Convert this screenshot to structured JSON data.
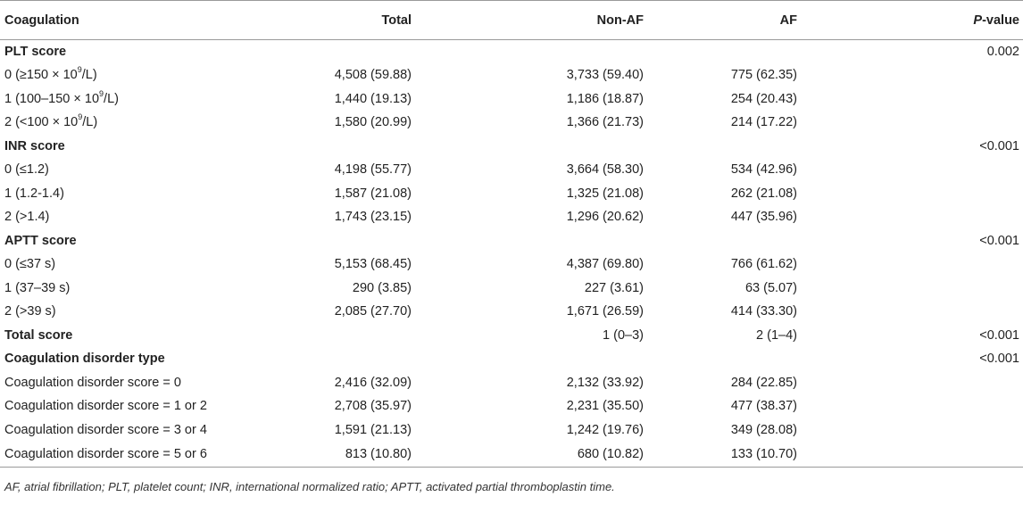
{
  "header": {
    "coagulation": "Coagulation",
    "total": "Total",
    "non_af": "Non-AF",
    "af": "AF",
    "p_italic": "P",
    "p_rest": "-value"
  },
  "rows": [
    {
      "label": "PLT score",
      "section": true,
      "total": "",
      "nonaf": "",
      "af": "",
      "p": "0.002"
    },
    {
      "label_pre": "0 (≥150 × 10",
      "sup": "9",
      "label_post": "/L)",
      "total": "4,508 (59.88)",
      "nonaf": "3,733 (59.40)",
      "af": "775 (62.35)",
      "p": ""
    },
    {
      "label_pre": "1 (100–150 × 10",
      "sup": "9",
      "label_post": "/L)",
      "total": "1,440 (19.13)",
      "nonaf": "1,186 (18.87)",
      "af": "254 (20.43)",
      "p": ""
    },
    {
      "label_pre": "2 (<100 × 10",
      "sup": "9",
      "label_post": "/L)",
      "total": "1,580 (20.99)",
      "nonaf": "1,366 (21.73)",
      "af": "214 (17.22)",
      "p": ""
    },
    {
      "label": "INR score",
      "section": true,
      "total": "",
      "nonaf": "",
      "af": "",
      "p": "<0.001"
    },
    {
      "label": "0 (≤1.2)",
      "total": "4,198 (55.77)",
      "nonaf": "3,664 (58.30)",
      "af": "534 (42.96)",
      "p": ""
    },
    {
      "label": "1 (1.2-1.4)",
      "total": "1,587 (21.08)",
      "nonaf": "1,325 (21.08)",
      "af": "262 (21.08)",
      "p": ""
    },
    {
      "label": "2 (>1.4)",
      "total": "1,743 (23.15)",
      "nonaf": "1,296 (20.62)",
      "af": "447 (35.96)",
      "p": ""
    },
    {
      "label": "APTT score",
      "section": true,
      "total": "",
      "nonaf": "",
      "af": "",
      "p": "<0.001"
    },
    {
      "label": "0 (≤37 s)",
      "total": "5,153 (68.45)",
      "nonaf": "4,387 (69.80)",
      "af": "766 (61.62)",
      "p": ""
    },
    {
      "label": "1 (37–39 s)",
      "total": "290 (3.85)",
      "nonaf": "227 (3.61)",
      "af": "63 (5.07)",
      "p": ""
    },
    {
      "label": "2 (>39 s)",
      "total": "2,085 (27.70)",
      "nonaf": "1,671 (26.59)",
      "af": "414 (33.30)",
      "p": ""
    },
    {
      "label": "Total score",
      "section": true,
      "total": "",
      "nonaf": "1 (0–3)",
      "af": "2 (1–4)",
      "p": "<0.001"
    },
    {
      "label": "Coagulation disorder type",
      "section": true,
      "total": "",
      "nonaf": "",
      "af": "",
      "p": "<0.001"
    },
    {
      "label": "Coagulation disorder score = 0",
      "total": "2,416 (32.09)",
      "nonaf": "2,132 (33.92)",
      "af": "284 (22.85)",
      "p": ""
    },
    {
      "label": "Coagulation disorder score = 1 or 2",
      "total": "2,708 (35.97)",
      "nonaf": "2,231 (35.50)",
      "af": "477 (38.37)",
      "p": ""
    },
    {
      "label": "Coagulation disorder score = 3 or 4",
      "total": "1,591 (21.13)",
      "nonaf": "1,242 (19.76)",
      "af": "349 (28.08)",
      "p": ""
    },
    {
      "label": "Coagulation disorder score = 5 or 6",
      "total": "813 (10.80)",
      "nonaf": "680 (10.82)",
      "af": "133 (10.70)",
      "p": ""
    }
  ],
  "footnote": "AF, atrial fibrillation; PLT, platelet count; INR, international normalized ratio; APTT, activated partial thromboplastin time."
}
